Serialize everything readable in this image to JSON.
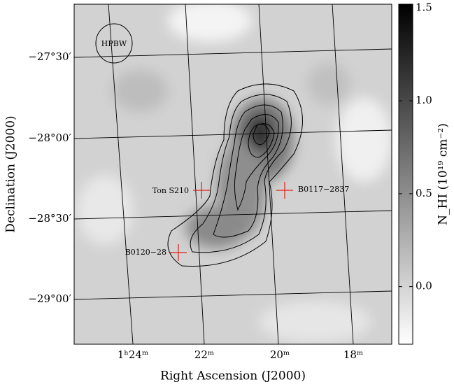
{
  "chart_data": {
    "type": "heatmap",
    "xlabel": "Right Ascension (J2000)",
    "ylabel": "Declination (J2000)",
    "xtick_labels": [
      "1ʰ24ᵐ",
      "22ᵐ",
      "20ᵐ",
      "18ᵐ"
    ],
    "ytick_labels": [
      "−27°30′",
      "−28°00′",
      "−28°30′",
      "−29°00′"
    ],
    "annotations": [
      "HPBW",
      "Ton S210",
      "B0117−2837",
      "B0120−28"
    ],
    "colorbar": {
      "label": "N_HI (10¹⁹ cm⁻²)",
      "lim": [
        -0.31,
        1.52
      ],
      "ticks": [
        {
          "value": 0,
          "label": "0.0"
        },
        0.5,
        {
          "value": 1,
          "label": "1.0"
        },
        1.5
      ],
      "colors": [
        "#ffffff",
        "#000000"
      ]
    }
  }
}
